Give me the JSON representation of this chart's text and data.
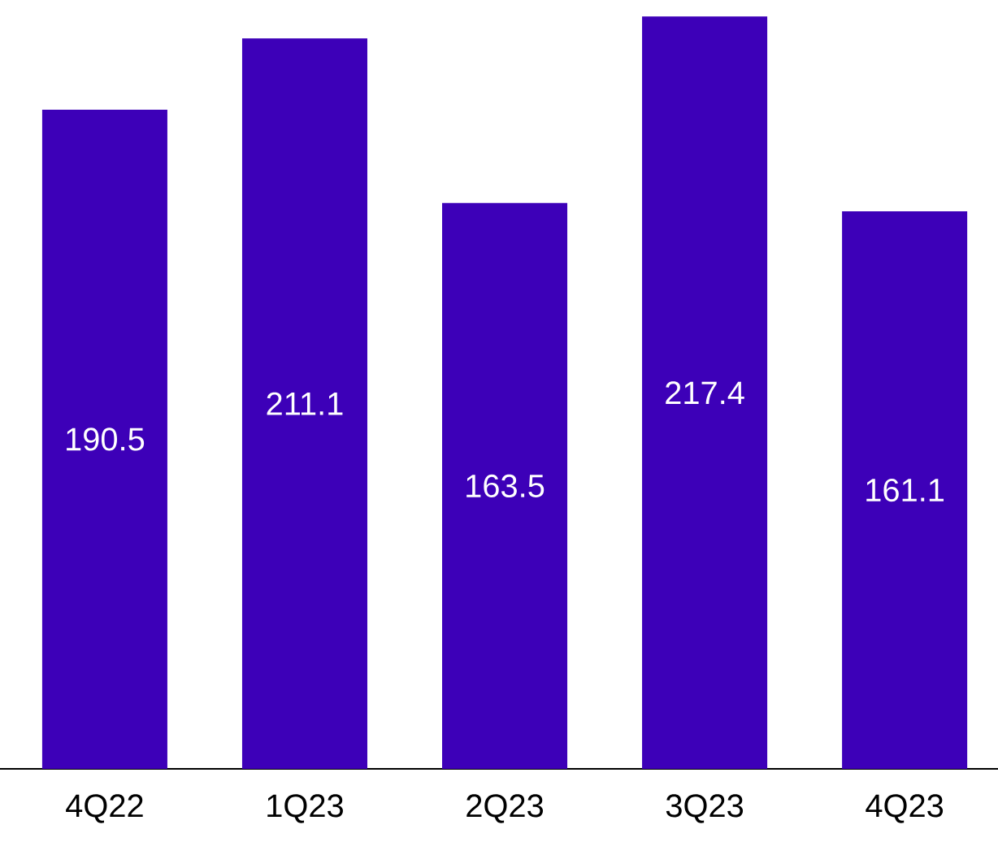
{
  "chart_data": {
    "type": "bar",
    "categories": [
      "4Q22",
      "1Q23",
      "2Q23",
      "3Q23",
      "4Q23"
    ],
    "values": [
      190.5,
      211.1,
      163.5,
      217.4,
      161.1
    ],
    "color": "#3d00b8",
    "data_labels": true
  }
}
